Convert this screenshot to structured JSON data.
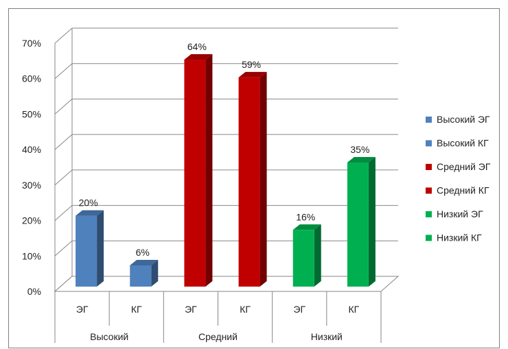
{
  "chart_data": {
    "type": "bar",
    "title": "",
    "xlabel": "",
    "ylabel": "",
    "ylim": [
      0,
      0.7
    ],
    "y_ticks": [
      "0%",
      "10%",
      "20%",
      "30%",
      "40%",
      "50%",
      "60%",
      "70%"
    ],
    "y_tick_values": [
      0,
      0.1,
      0.2,
      0.3,
      0.4,
      0.5,
      0.6,
      0.7
    ],
    "grid": true,
    "three_d": true,
    "legend_position": "right",
    "groups": [
      {
        "label": "Высокий",
        "bars": [
          {
            "sub": "ЭГ",
            "value": 0.2,
            "label": "20%",
            "series": "Высокий ЭГ",
            "color": "#4f81bd"
          },
          {
            "sub": "КГ",
            "value": 0.06,
            "label": "6%",
            "series": "Высокий КГ",
            "color": "#4f81bd"
          }
        ]
      },
      {
        "label": "Средний",
        "bars": [
          {
            "sub": "ЭГ",
            "value": 0.64,
            "label": "64%",
            "series": "Средний ЭГ",
            "color": "#c00000"
          },
          {
            "sub": "КГ",
            "value": 0.59,
            "label": "59%",
            "series": "Средний КГ",
            "color": "#c00000"
          }
        ]
      },
      {
        "label": "Низкий",
        "bars": [
          {
            "sub": "ЭГ",
            "value": 0.16,
            "label": "16%",
            "series": "Низкий ЭГ",
            "color": "#00b050"
          },
          {
            "sub": "КГ",
            "value": 0.35,
            "label": "35%",
            "series": "Низкий КГ",
            "color": "#00b050"
          }
        ]
      }
    ],
    "legend": [
      {
        "name": "Высокий ЭГ",
        "color": "#4f81bd"
      },
      {
        "name": "Высокий КГ",
        "color": "#4f81bd"
      },
      {
        "name": "Средний ЭГ",
        "color": "#c00000"
      },
      {
        "name": "Средний КГ",
        "color": "#c00000"
      },
      {
        "name": "Низкий ЭГ",
        "color": "#00b050"
      },
      {
        "name": "Низкий КГ",
        "color": "#00b050"
      }
    ]
  }
}
